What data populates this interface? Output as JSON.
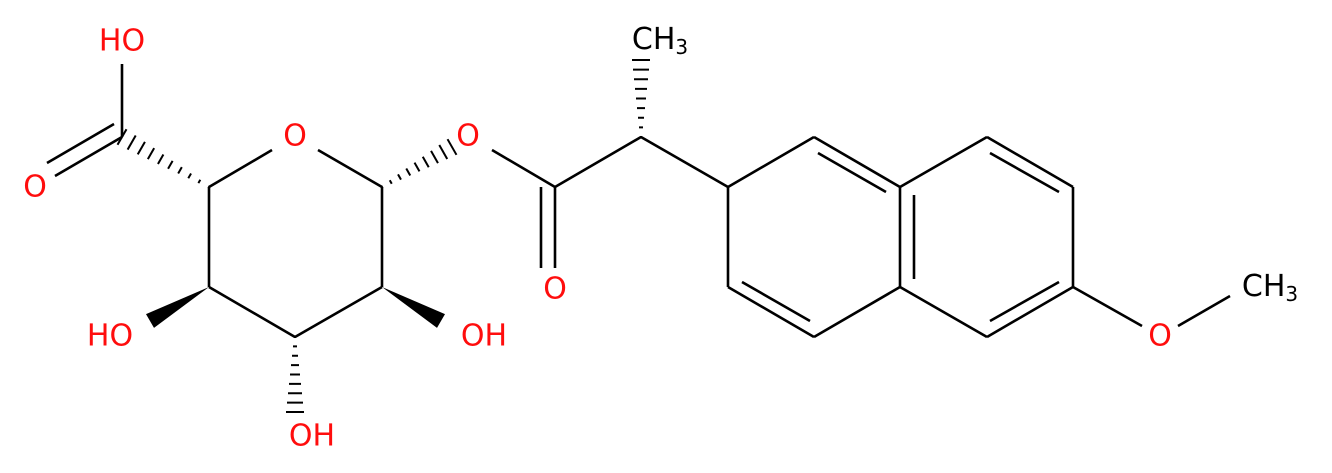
{
  "molecule": {
    "atoms": {
      "acid_hydroxyl": "HO",
      "acid_carbonyl_oxygen": "O",
      "ring_oxygen": "O",
      "ester_oxygen": "O",
      "ester_carbonyl_oxygen": "O",
      "alpha_methyl": {
        "main": "CH",
        "sub": "3"
      },
      "hydroxyl_left": "HO",
      "hydroxyl_bottom": "OH",
      "hydroxyl_right": "OH",
      "methoxy_oxygen": "O",
      "methoxy_methyl": {
        "main": "CH",
        "sub": "3"
      }
    }
  }
}
